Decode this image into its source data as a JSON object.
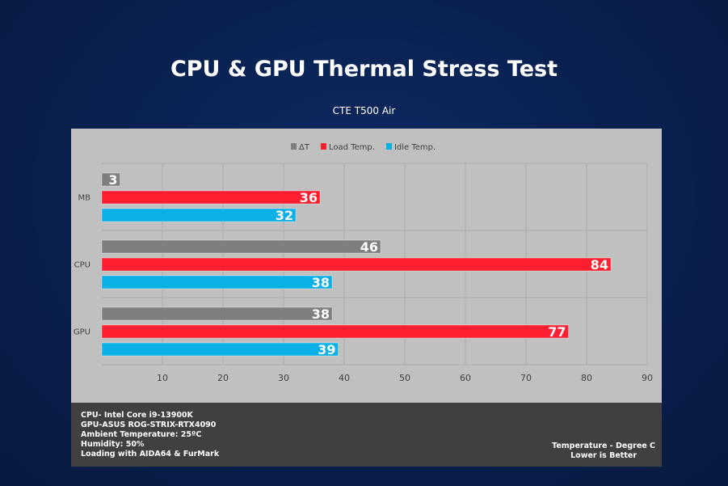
{
  "chart_data": {
    "type": "bar",
    "orientation": "horizontal",
    "title": "CPU & GPU Thermal Stress Test",
    "subtitle": "CTE T500 Air",
    "categories": [
      "MB",
      "CPU",
      "GPU"
    ],
    "series": [
      {
        "name": "ΔT",
        "color": "#7f7f7f",
        "values": [
          3,
          46,
          38
        ]
      },
      {
        "name": "Load Temp.",
        "color": "#ff1f30",
        "values": [
          36,
          84,
          77
        ]
      },
      {
        "name": "Idle Temp.",
        "color": "#0ab0e6",
        "values": [
          32,
          38,
          39
        ]
      }
    ],
    "xlim": [
      0,
      90
    ],
    "xticks": [
      10,
      20,
      30,
      40,
      50,
      60,
      70,
      80,
      90
    ],
    "legend": "top-center",
    "grid": true
  },
  "footer": {
    "specs": [
      "CPU- Intel Core i9-13900K",
      "GPU-ASUS ROG-STRIX-RTX4090",
      "Ambient Temperature: 25ºC",
      "Humidity: 50%",
      "Loading with AIDA64  & FurMark"
    ],
    "note": [
      "Temperature - Degree C",
      "Lower is Better"
    ]
  }
}
